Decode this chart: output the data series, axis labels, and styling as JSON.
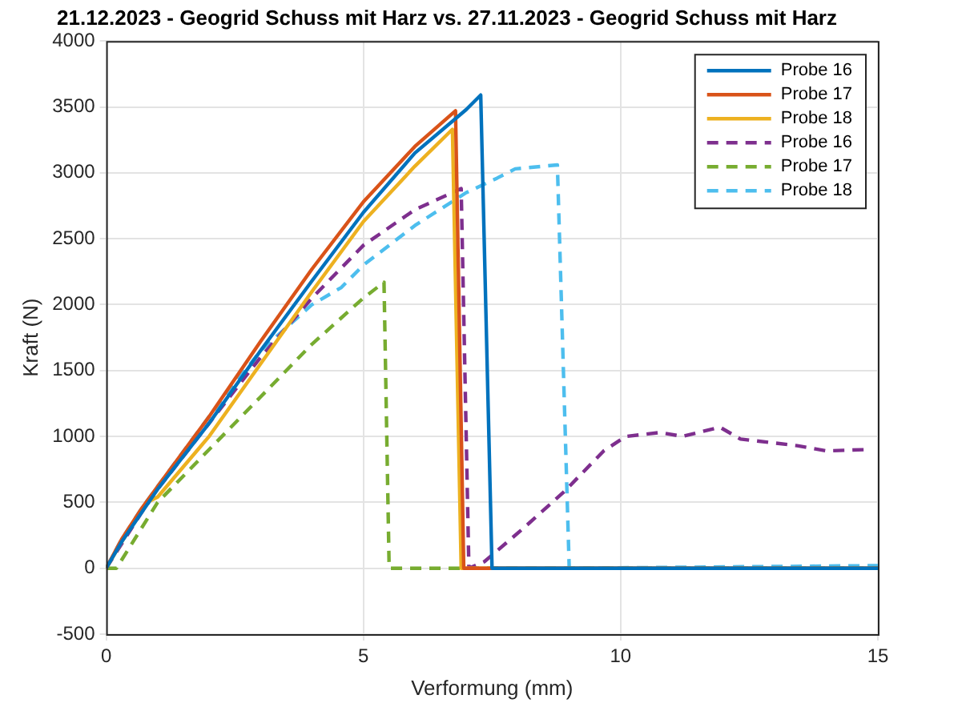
{
  "chart_data": {
    "type": "line",
    "title": "21.12.2023 - Geogrid Schuss mit Harz vs. 27.11.2023 - Geogrid Schuss mit Harz",
    "xlabel": "Verformung (mm)",
    "ylabel": "Kraft (N)",
    "xlim": [
      0,
      15
    ],
    "xticks": [
      0,
      5,
      10,
      15
    ],
    "ylim": [
      -500,
      4000
    ],
    "yticks": [
      -500,
      0,
      500,
      1000,
      1500,
      2000,
      2500,
      3000,
      3500,
      4000
    ],
    "grid": true,
    "legend": "top right",
    "marker": "none",
    "series": [
      {
        "name": "Probe 16",
        "color": "#0072bd",
        "line_style": "solid",
        "x": [
          0,
          0.3,
          0.7,
          1,
          2,
          3,
          4,
          5,
          6,
          7,
          7.28,
          7.5,
          15
        ],
        "values": [
          0,
          200,
          430,
          600,
          1100,
          1650,
          2180,
          2700,
          3150,
          3480,
          3590,
          0,
          0
        ]
      },
      {
        "name": "Probe 17",
        "color": "#d95319",
        "line_style": "solid",
        "x": [
          0,
          0.3,
          0.7,
          1,
          2,
          3,
          4,
          5,
          6,
          6.79,
          6.95,
          15
        ],
        "values": [
          0,
          220,
          460,
          620,
          1150,
          1720,
          2270,
          2780,
          3200,
          3470,
          0,
          0
        ]
      },
      {
        "name": "Probe 18",
        "color": "#edb120",
        "line_style": "solid",
        "x": [
          0,
          0.3,
          0.8,
          1,
          2,
          3,
          4,
          5,
          6,
          6.73,
          6.9,
          15
        ],
        "values": [
          0,
          200,
          500,
          540,
          1000,
          1550,
          2100,
          2630,
          3050,
          3330,
          0,
          0
        ]
      },
      {
        "name": "Probe 16",
        "color": "#7e2f8e",
        "line_style": "dashed",
        "x": [
          0,
          0.7,
          1,
          2,
          3,
          4,
          5,
          6,
          6.9,
          7.05,
          7.35,
          8.1,
          8.9,
          9.67,
          10.1,
          10.77,
          11.2,
          11.93,
          12.33,
          13.43,
          14,
          14.75
        ],
        "values": [
          0,
          430,
          600,
          1100,
          1600,
          2050,
          2450,
          2720,
          2880,
          0,
          50,
          300,
          580,
          890,
          1000,
          1030,
          1000,
          1070,
          980,
          930,
          890,
          900
        ]
      },
      {
        "name": "Probe 17",
        "color": "#77ac30",
        "line_style": "dashed",
        "x": [
          0,
          0.2,
          1,
          2,
          3,
          4,
          5,
          5.4,
          5.5,
          15
        ],
        "values": [
          0,
          0,
          500,
          900,
          1300,
          1700,
          2050,
          2170,
          0,
          0
        ]
      },
      {
        "name": "Probe 18",
        "color": "#4dbeee",
        "line_style": "dashed",
        "x": [
          0,
          0.3,
          0.7,
          1,
          2,
          3,
          4,
          4.57,
          5,
          6,
          7,
          7.6,
          7.95,
          8.77,
          9.0,
          15
        ],
        "values": [
          0,
          220,
          460,
          620,
          1150,
          1650,
          2000,
          2130,
          2300,
          2600,
          2850,
          2960,
          3030,
          3060,
          0,
          20
        ]
      }
    ]
  }
}
